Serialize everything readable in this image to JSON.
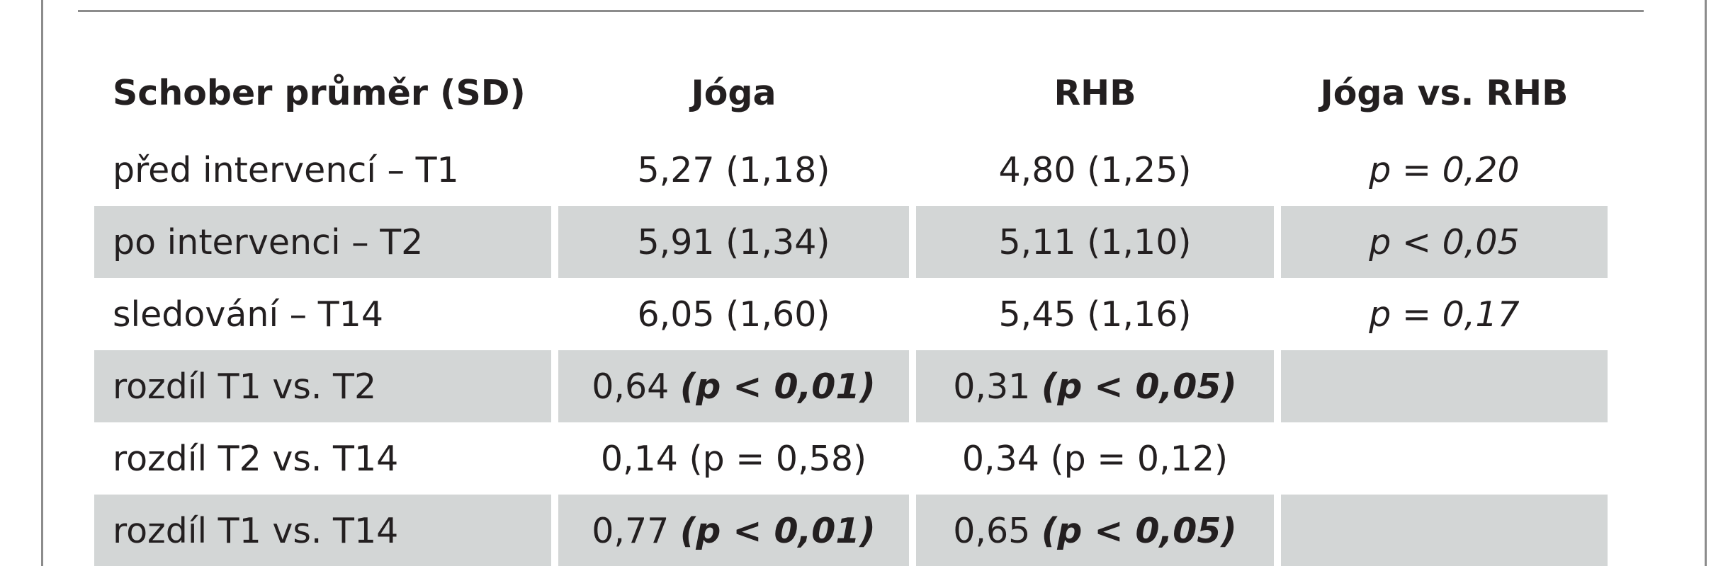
{
  "table": {
    "headers": [
      "Schober průměr (SD)",
      "Jóga",
      "RHB",
      "Jóga vs. RHB"
    ],
    "rows": [
      {
        "label": "před intervencí – T1",
        "joga": {
          "value": "5,27 (1,18)",
          "note": ""
        },
        "rhb": {
          "value": "4,80 (1,25)",
          "note": ""
        },
        "comparison": "p = 0,20",
        "shaded": false
      },
      {
        "label": "po intervenci – T2",
        "joga": {
          "value": "5,91 (1,34)",
          "note": ""
        },
        "rhb": {
          "value": "5,11 (1,10)",
          "note": ""
        },
        "comparison": "p < 0,05",
        "shaded": true
      },
      {
        "label": "sledování – T14",
        "joga": {
          "value": "6,05 (1,60)",
          "note": ""
        },
        "rhb": {
          "value": "5,45 (1,16)",
          "note": ""
        },
        "comparison": "p = 0,17",
        "shaded": false
      },
      {
        "label": "rozdíl T1 vs. T2",
        "joga": {
          "value": "0,64",
          "note": "(p < 0,01)"
        },
        "rhb": {
          "value": "0,31",
          "note": "(p < 0,05)"
        },
        "comparison": "",
        "shaded": true
      },
      {
        "label": "rozdíl T2 vs. T14",
        "joga": {
          "value": "0,14 (p = 0,58)",
          "note": ""
        },
        "rhb": {
          "value": "0,34 (p = 0,12)",
          "note": ""
        },
        "comparison": "",
        "shaded": false
      },
      {
        "label": "rozdíl T1 vs. T14",
        "joga": {
          "value": "0,77",
          "note": "(p < 0,01)"
        },
        "rhb": {
          "value": "0,65",
          "note": "(p < 0,05)"
        },
        "comparison": "",
        "shaded": true
      }
    ]
  },
  "colors": {
    "shade": "#d3d6d6",
    "rule": "#8c8c8c",
    "text": "#231f20"
  }
}
